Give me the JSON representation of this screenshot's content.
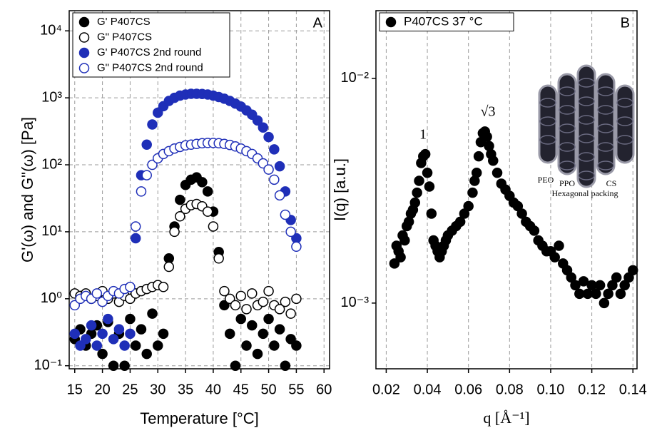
{
  "chart_data": [
    {
      "type": "scatter",
      "x_label": "Temperature [°C]",
      "y_label": "G'(ω) and G\"(ω) [Pa]",
      "panel_label": "A",
      "xlim": [
        14,
        61
      ],
      "ylim": [
        0.09,
        20000
      ],
      "log_y": true,
      "grid": "both",
      "legend": "upper left",
      "xticks": [
        15,
        20,
        25,
        30,
        35,
        40,
        45,
        50,
        55,
        60
      ],
      "yticks": [
        {
          "value": 0.1,
          "label": "10⁻¹"
        },
        {
          "value": 1,
          "label": "10⁰"
        },
        {
          "value": 10,
          "label": "10¹"
        },
        {
          "value": 100,
          "label": "10²"
        },
        {
          "value": 1000,
          "label": "10³"
        },
        {
          "value": 10000,
          "label": "10⁴"
        }
      ],
      "x": [
        15,
        16,
        17,
        18,
        19,
        20,
        21,
        22,
        23,
        24,
        25,
        26,
        27,
        28,
        29,
        30,
        31,
        32,
        33,
        34,
        35,
        36,
        37,
        38,
        39,
        40,
        41,
        42,
        43,
        44,
        45,
        46,
        47,
        48,
        49,
        50,
        51,
        52,
        53,
        54,
        55
      ],
      "series": [
        {
          "name": "G' P407CS",
          "color": "#000000",
          "marker": "filled",
          "values": [
            0.25,
            0.35,
            0.2,
            0.3,
            0.4,
            0.15,
            0.45,
            0.1,
            0.3,
            0.1,
            0.5,
            0.2,
            0.35,
            0.15,
            0.6,
            0.2,
            0.3,
            4,
            12,
            30,
            50,
            60,
            65,
            55,
            40,
            20,
            5,
            0.8,
            0.3,
            0.1,
            0.5,
            0.2,
            0.4,
            0.15,
            0.3,
            0.5,
            0.2,
            0.35,
            0.1,
            0.25,
            0.2
          ]
        },
        {
          "name": "G\" P407CS",
          "color": "#000000",
          "marker": "open",
          "values": [
            1.2,
            1.1,
            1.2,
            1.0,
            1.1,
            1.3,
            1.0,
            1.2,
            0.9,
            1.1,
            1.0,
            1.2,
            1.3,
            1.4,
            1.5,
            1.6,
            1.5,
            3,
            10,
            17,
            22,
            25,
            26,
            24,
            20,
            12,
            4,
            1.3,
            1.0,
            0.8,
            1.1,
            0.7,
            1.2,
            0.8,
            0.9,
            1.3,
            0.8,
            0.7,
            0.9,
            0.6,
            1.0
          ]
        },
        {
          "name": "G' P407CS 2nd round",
          "color": "#1f2fb8",
          "marker": "filled",
          "values": [
            0.3,
            0.2,
            0.25,
            0.4,
            0.2,
            0.3,
            0.5,
            0.25,
            0.35,
            0.2,
            0.3,
            8,
            70,
            200,
            400,
            600,
            750,
            900,
            1000,
            1080,
            1120,
            1150,
            1150,
            1140,
            1120,
            1080,
            1030,
            970,
            900,
            820,
            740,
            650,
            560,
            460,
            360,
            260,
            170,
            95,
            40,
            15,
            8
          ]
        },
        {
          "name": "G\" P407CS 2nd round",
          "color": "#1f2fb8",
          "marker": "open",
          "values": [
            0.8,
            1.0,
            1.1,
            1.0,
            1.2,
            0.9,
            1.1,
            1.3,
            1.2,
            1.4,
            1.5,
            12,
            40,
            70,
            100,
            125,
            145,
            160,
            175,
            185,
            195,
            200,
            205,
            210,
            212,
            212,
            210,
            205,
            198,
            188,
            175,
            160,
            145,
            125,
            105,
            85,
            60,
            35,
            18,
            10,
            6
          ]
        }
      ]
    },
    {
      "type": "scatter",
      "x_label": "q [Å⁻¹]",
      "y_label": "I(q) [a.u.]",
      "panel_label": "B",
      "xlim": [
        0.015,
        0.142
      ],
      "ylim": [
        0.00051,
        0.02
      ],
      "log_y": true,
      "grid": "x",
      "legend": "upper left",
      "xticks": [
        0.02,
        0.04,
        0.06,
        0.08,
        {
          "value": 0.1,
          "label": "0.10"
        },
        0.12,
        0.14
      ],
      "yticks": [
        {
          "value": 0.001,
          "label": "10⁻³"
        },
        {
          "value": 0.01,
          "label": "10⁻²"
        }
      ],
      "annotations": [
        "1",
        "√3"
      ],
      "inset": {
        "labels": [
          "PEO",
          "PPO",
          "CS"
        ],
        "caption": "Hexagonal packing"
      },
      "series": [
        {
          "name": "P407CS 37 °C",
          "color": "#000000",
          "marker": "filled",
          "x": [
            0.024,
            0.025,
            0.026,
            0.027,
            0.028,
            0.029,
            0.03,
            0.031,
            0.032,
            0.033,
            0.034,
            0.035,
            0.036,
            0.037,
            0.038,
            0.039,
            0.04,
            0.041,
            0.042,
            0.043,
            0.044,
            0.045,
            0.046,
            0.047,
            0.048,
            0.049,
            0.05,
            0.052,
            0.054,
            0.056,
            0.058,
            0.06,
            0.062,
            0.063,
            0.064,
            0.065,
            0.066,
            0.067,
            0.068,
            0.069,
            0.07,
            0.071,
            0.072,
            0.074,
            0.076,
            0.078,
            0.08,
            0.082,
            0.084,
            0.086,
            0.088,
            0.09,
            0.092,
            0.094,
            0.096,
            0.098,
            0.1,
            0.102,
            0.104,
            0.106,
            0.108,
            0.11,
            0.112,
            0.114,
            0.116,
            0.118,
            0.12,
            0.122,
            0.124,
            0.126,
            0.128,
            0.13,
            0.132,
            0.134,
            0.136,
            0.138,
            0.14
          ],
          "values": [
            0.0015,
            0.0018,
            0.0017,
            0.0016,
            0.002,
            0.0019,
            0.0022,
            0.0023,
            0.0025,
            0.0026,
            0.0028,
            0.0031,
            0.0035,
            0.0042,
            0.0045,
            0.0046,
            0.0038,
            0.0033,
            0.0025,
            0.0019,
            0.0018,
            0.0017,
            0.0016,
            0.0017,
            0.0018,
            0.0019,
            0.002,
            0.0021,
            0.0022,
            0.0023,
            0.0025,
            0.0027,
            0.0031,
            0.0035,
            0.0038,
            0.0045,
            0.0052,
            0.0057,
            0.0058,
            0.0055,
            0.005,
            0.0046,
            0.0043,
            0.0038,
            0.0034,
            0.0032,
            0.003,
            0.0028,
            0.0027,
            0.0025,
            0.0023,
            0.0022,
            0.0021,
            0.0019,
            0.0018,
            0.0017,
            0.0017,
            0.0016,
            0.0018,
            0.0015,
            0.0014,
            0.0013,
            0.0012,
            0.0011,
            0.00125,
            0.0011,
            0.0012,
            0.0011,
            0.0012,
            0.001,
            0.0011,
            0.0012,
            0.0013,
            0.0011,
            0.0012,
            0.0013,
            0.0014
          ]
        }
      ]
    }
  ]
}
